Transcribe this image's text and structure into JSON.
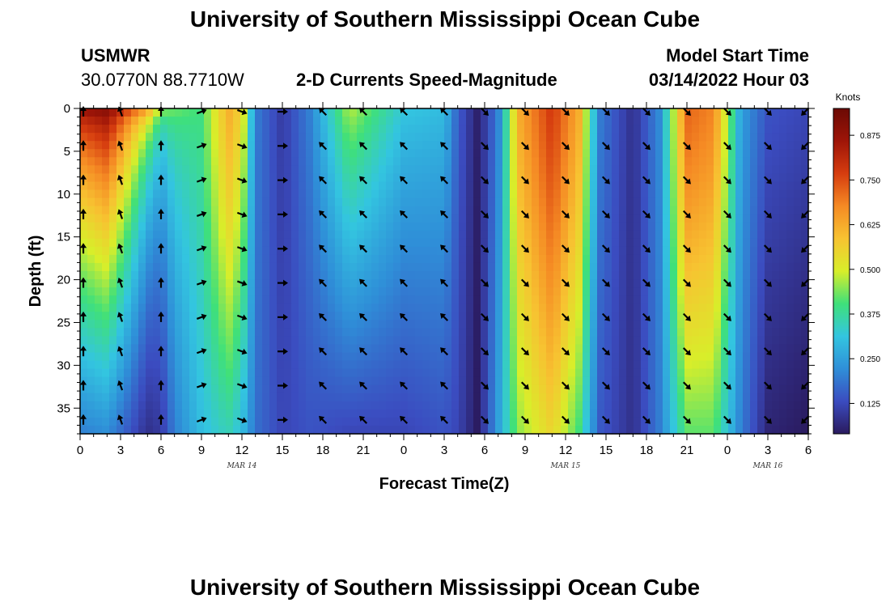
{
  "header": {
    "title": "University of Southern Mississippi Ocean Cube",
    "station": "USMWR",
    "coords": "30.0770N  88.7710W",
    "subtitle": "2-D Currents Speed-Magnitude",
    "model_start_label": "Model Start Time",
    "model_start_value": "03/14/2022 Hour 03"
  },
  "footer": {
    "title": "University of Southern Mississippi Ocean Cube"
  },
  "colors": {
    "scale": [
      "#2a1a5e",
      "#3b4cc0",
      "#2f8fd8",
      "#33c5e0",
      "#3fe07a",
      "#d8ee2a",
      "#f7c331",
      "#f58a24",
      "#d63d0f",
      "#9e1508",
      "#6b0a04"
    ]
  },
  "chart_data": {
    "type": "heatmap",
    "title": "2-D Currents Speed-Magnitude",
    "xlabel": "Forecast Time(Z)",
    "ylabel": "Depth (ft)",
    "x_tick_labels": [
      "0",
      "3",
      "6",
      "9",
      "12",
      "15",
      "18",
      "21",
      "0",
      "3",
      "6",
      "9",
      "12",
      "15",
      "18",
      "21",
      "0",
      "3",
      "6"
    ],
    "x_range_hours": [
      0,
      54
    ],
    "date_labels": [
      {
        "text": "MAR 14",
        "hour": 12
      },
      {
        "text": "MAR 15",
        "hour": 36
      },
      {
        "text": "MAR 16",
        "hour": 51
      }
    ],
    "y_tick_labels": [
      "0",
      "5",
      "10",
      "15",
      "20",
      "25",
      "30",
      "35"
    ],
    "y_range_ft": [
      0,
      38
    ],
    "colorbar": {
      "label": "Knots",
      "range": [
        0.04,
        0.95
      ],
      "ticks": [
        "0.875",
        "0.750",
        "0.625",
        "0.500",
        "0.375",
        "0.250",
        "0.125"
      ]
    },
    "arrow_hours": [
      0,
      3,
      6,
      9,
      12,
      15,
      18,
      21,
      24,
      27,
      30,
      33,
      36,
      39,
      42,
      45,
      48,
      51,
      54
    ],
    "arrow_depths_ft": [
      0,
      4,
      8,
      12,
      16,
      20,
      24,
      28,
      32,
      36
    ],
    "speed_profiles_knots": [
      {
        "hour": 0,
        "surface": 0.9,
        "bottom": 0.2,
        "bend": 0.6
      },
      {
        "hour": 2,
        "surface": 0.92,
        "bottom": 0.22,
        "bend": 0.7
      },
      {
        "hour": 5,
        "surface": 0.8,
        "bottom": 0.08,
        "bend": 0.3
      },
      {
        "hour": 6,
        "surface": 0.55,
        "bottom": 0.1,
        "bend": 0.3
      },
      {
        "hour": 7,
        "surface": 0.45,
        "bottom": 0.2,
        "bend": 0.5
      },
      {
        "hour": 9,
        "surface": 0.4,
        "bottom": 0.3,
        "bend": 1.0
      },
      {
        "hour": 11,
        "surface": 0.62,
        "bottom": 0.35,
        "bend": 1.2
      },
      {
        "hour": 12,
        "surface": 0.55,
        "bottom": 0.3,
        "bend": 1.0
      },
      {
        "hour": 13,
        "surface": 0.2,
        "bottom": 0.18,
        "bend": 1.0
      },
      {
        "hour": 15,
        "surface": 0.1,
        "bottom": 0.12,
        "bend": 1.0
      },
      {
        "hour": 17,
        "surface": 0.2,
        "bottom": 0.14,
        "bend": 1.0
      },
      {
        "hour": 20,
        "surface": 0.48,
        "bottom": 0.12,
        "bend": 0.8
      },
      {
        "hour": 24,
        "surface": 0.32,
        "bottom": 0.12,
        "bend": 0.8
      },
      {
        "hour": 27,
        "surface": 0.3,
        "bottom": 0.14,
        "bend": 0.8
      },
      {
        "hour": 28,
        "surface": 0.16,
        "bottom": 0.12,
        "bend": 1.0
      },
      {
        "hour": 29.5,
        "surface": 0.05,
        "bottom": 0.04,
        "bend": 1.0
      },
      {
        "hour": 31,
        "surface": 0.2,
        "bottom": 0.25,
        "bend": 1.0
      },
      {
        "hour": 32.5,
        "surface": 0.62,
        "bottom": 0.45,
        "bend": 1.2
      },
      {
        "hour": 35,
        "surface": 0.78,
        "bottom": 0.55,
        "bend": 1.2
      },
      {
        "hour": 37,
        "surface": 0.62,
        "bottom": 0.4,
        "bend": 1.2
      },
      {
        "hour": 38.5,
        "surface": 0.2,
        "bottom": 0.15,
        "bend": 1.0
      },
      {
        "hour": 41,
        "surface": 0.08,
        "bottom": 0.08,
        "bend": 1.0
      },
      {
        "hour": 43,
        "surface": 0.22,
        "bottom": 0.2,
        "bend": 1.0
      },
      {
        "hour": 45,
        "surface": 0.72,
        "bottom": 0.42,
        "bend": 1.2
      },
      {
        "hour": 47,
        "surface": 0.68,
        "bottom": 0.42,
        "bend": 1.2
      },
      {
        "hour": 49,
        "surface": 0.25,
        "bottom": 0.2,
        "bend": 1.0
      },
      {
        "hour": 51,
        "surface": 0.14,
        "bottom": 0.06,
        "bend": 1.0
      },
      {
        "hour": 54,
        "surface": 0.12,
        "bottom": 0.04,
        "bend": 1.0
      }
    ],
    "arrow_directions_by_column": [
      "N",
      "NNW",
      "N",
      "ENE",
      "ESE",
      "E",
      "NW",
      "NW",
      "NW",
      "NW",
      "SE",
      "SE",
      "SE",
      "SE",
      "SE",
      "SE",
      "SE",
      "SE",
      "SW"
    ]
  }
}
